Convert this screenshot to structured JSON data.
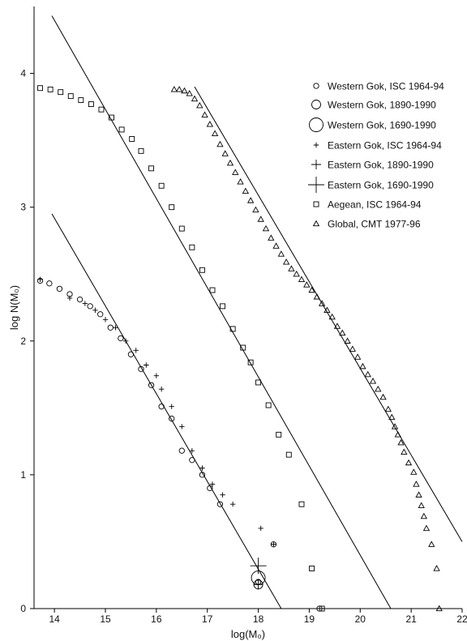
{
  "chart_data": {
    "type": "scatter",
    "xlabel": "log(M₀)",
    "ylabel": "log N(M₀)",
    "xlim": [
      13.6,
      22
    ],
    "ylim": [
      0,
      4.5
    ],
    "xticks": [
      14,
      15,
      16,
      17,
      18,
      19,
      20,
      21,
      22
    ],
    "yticks": [
      0,
      1,
      2,
      3,
      4
    ],
    "grid": false,
    "legend_position": "top-right",
    "series": [
      {
        "name": "Western Gok, ISC 1964-94",
        "marker": "circle-small",
        "points": [
          [
            13.72,
            2.45
          ],
          [
            13.9,
            2.43
          ],
          [
            14.1,
            2.39
          ],
          [
            14.3,
            2.35
          ],
          [
            14.5,
            2.31
          ],
          [
            14.7,
            2.26
          ],
          [
            14.9,
            2.2
          ],
          [
            15.1,
            2.1
          ],
          [
            15.3,
            2.02
          ],
          [
            15.5,
            1.9
          ],
          [
            15.7,
            1.79
          ],
          [
            15.9,
            1.67
          ],
          [
            16.1,
            1.51
          ],
          [
            16.3,
            1.42
          ],
          [
            16.5,
            1.18
          ],
          [
            16.7,
            1.11
          ],
          [
            16.9,
            1.0
          ],
          [
            17.05,
            0.9
          ],
          [
            17.25,
            0.78
          ],
          [
            18.0,
            0.2
          ],
          [
            18.3,
            0.48
          ],
          [
            19.2,
            0.0
          ]
        ]
      },
      {
        "name": "Western Gok, 1890-1990",
        "marker": "circle-medium",
        "points": [
          [
            18.0,
            0.18
          ]
        ]
      },
      {
        "name": "Western Gok, 1690-1990",
        "marker": "circle-large",
        "points": [
          [
            18.0,
            0.23
          ]
        ]
      },
      {
        "name": "Eastern Gok, ISC 1964-94",
        "marker": "plus-small",
        "points": [
          [
            13.72,
            2.46
          ],
          [
            14.3,
            2.32
          ],
          [
            14.6,
            2.28
          ],
          [
            14.8,
            2.23
          ],
          [
            15.0,
            2.16
          ],
          [
            15.2,
            2.1
          ],
          [
            15.4,
            2.0
          ],
          [
            15.6,
            1.93
          ],
          [
            15.8,
            1.82
          ],
          [
            16.0,
            1.74
          ],
          [
            16.1,
            1.64
          ],
          [
            16.3,
            1.51
          ],
          [
            16.5,
            1.36
          ],
          [
            16.7,
            1.18
          ],
          [
            16.9,
            1.05
          ],
          [
            17.1,
            0.93
          ],
          [
            17.3,
            0.85
          ],
          [
            17.5,
            0.78
          ],
          [
            18.05,
            0.6
          ],
          [
            18.3,
            0.48
          ]
        ]
      },
      {
        "name": "Eastern Gok, 1890-1990",
        "marker": "plus-medium",
        "points": [
          [
            18.0,
            0.18
          ]
        ]
      },
      {
        "name": "Eastern Gok, 1690-1990",
        "marker": "plus-large",
        "points": [
          [
            18.0,
            0.32
          ]
        ]
      },
      {
        "name": "Aegean, ISC 1964-94",
        "marker": "square",
        "points": [
          [
            13.72,
            3.89
          ],
          [
            13.92,
            3.88
          ],
          [
            14.12,
            3.86
          ],
          [
            14.32,
            3.83
          ],
          [
            14.52,
            3.8
          ],
          [
            14.72,
            3.77
          ],
          [
            14.92,
            3.73
          ],
          [
            15.12,
            3.67
          ],
          [
            15.32,
            3.58
          ],
          [
            15.52,
            3.51
          ],
          [
            15.7,
            3.42
          ],
          [
            15.9,
            3.29
          ],
          [
            16.1,
            3.16
          ],
          [
            16.3,
            3.0
          ],
          [
            16.5,
            2.84
          ],
          [
            16.7,
            2.7
          ],
          [
            16.9,
            2.53
          ],
          [
            17.1,
            2.38
          ],
          [
            17.3,
            2.26
          ],
          [
            17.5,
            2.09
          ],
          [
            17.7,
            1.95
          ],
          [
            17.85,
            1.84
          ],
          [
            18.0,
            1.69
          ],
          [
            18.2,
            1.52
          ],
          [
            18.4,
            1.3
          ],
          [
            18.6,
            1.15
          ],
          [
            18.85,
            0.78
          ],
          [
            19.05,
            0.3
          ],
          [
            19.25,
            0.0
          ]
        ]
      },
      {
        "name": "Global, CMT 1977-96",
        "marker": "triangle",
        "points": [
          [
            16.35,
            3.88
          ],
          [
            16.45,
            3.88
          ],
          [
            16.55,
            3.87
          ],
          [
            16.65,
            3.85
          ],
          [
            16.75,
            3.81
          ],
          [
            16.85,
            3.76
          ],
          [
            16.95,
            3.69
          ],
          [
            17.05,
            3.62
          ],
          [
            17.15,
            3.55
          ],
          [
            17.25,
            3.47
          ],
          [
            17.35,
            3.4
          ],
          [
            17.45,
            3.33
          ],
          [
            17.55,
            3.26
          ],
          [
            17.65,
            3.19
          ],
          [
            17.75,
            3.12
          ],
          [
            17.85,
            3.05
          ],
          [
            17.95,
            2.98
          ],
          [
            18.05,
            2.91
          ],
          [
            18.15,
            2.84
          ],
          [
            18.25,
            2.77
          ],
          [
            18.35,
            2.71
          ],
          [
            18.45,
            2.65
          ],
          [
            18.55,
            2.59
          ],
          [
            18.65,
            2.54
          ],
          [
            18.75,
            2.5
          ],
          [
            18.85,
            2.46
          ],
          [
            18.95,
            2.42
          ],
          [
            19.05,
            2.38
          ],
          [
            19.15,
            2.33
          ],
          [
            19.25,
            2.28
          ],
          [
            19.35,
            2.23
          ],
          [
            19.45,
            2.18
          ],
          [
            19.55,
            2.11
          ],
          [
            19.65,
            2.06
          ],
          [
            19.75,
            2.0
          ],
          [
            19.85,
            1.94
          ],
          [
            19.95,
            1.88
          ],
          [
            20.05,
            1.81
          ],
          [
            20.15,
            1.75
          ],
          [
            20.25,
            1.7
          ],
          [
            20.35,
            1.64
          ],
          [
            20.45,
            1.58
          ],
          [
            20.55,
            1.49
          ],
          [
            20.62,
            1.43
          ],
          [
            20.68,
            1.36
          ],
          [
            20.74,
            1.3
          ],
          [
            20.8,
            1.24
          ],
          [
            20.86,
            1.17
          ],
          [
            20.95,
            1.09
          ],
          [
            21.05,
            1.02
          ],
          [
            21.1,
            0.93
          ],
          [
            21.15,
            0.85
          ],
          [
            21.2,
            0.77
          ],
          [
            21.25,
            0.69
          ],
          [
            21.3,
            0.6
          ],
          [
            21.4,
            0.48
          ],
          [
            21.5,
            0.3
          ],
          [
            21.55,
            0.0
          ]
        ]
      }
    ],
    "lines": [
      {
        "name": "",
        "x1": 13.95,
        "y1": 2.95,
        "x2": 18.45,
        "y2": 0.0
      },
      {
        "name": "",
        "x1": 13.95,
        "y1": 4.43,
        "x2": 20.6,
        "y2": 0.0
      },
      {
        "name": "",
        "x1": 16.75,
        "y1": 3.9,
        "x2": 22.0,
        "y2": 0.5
      }
    ]
  }
}
